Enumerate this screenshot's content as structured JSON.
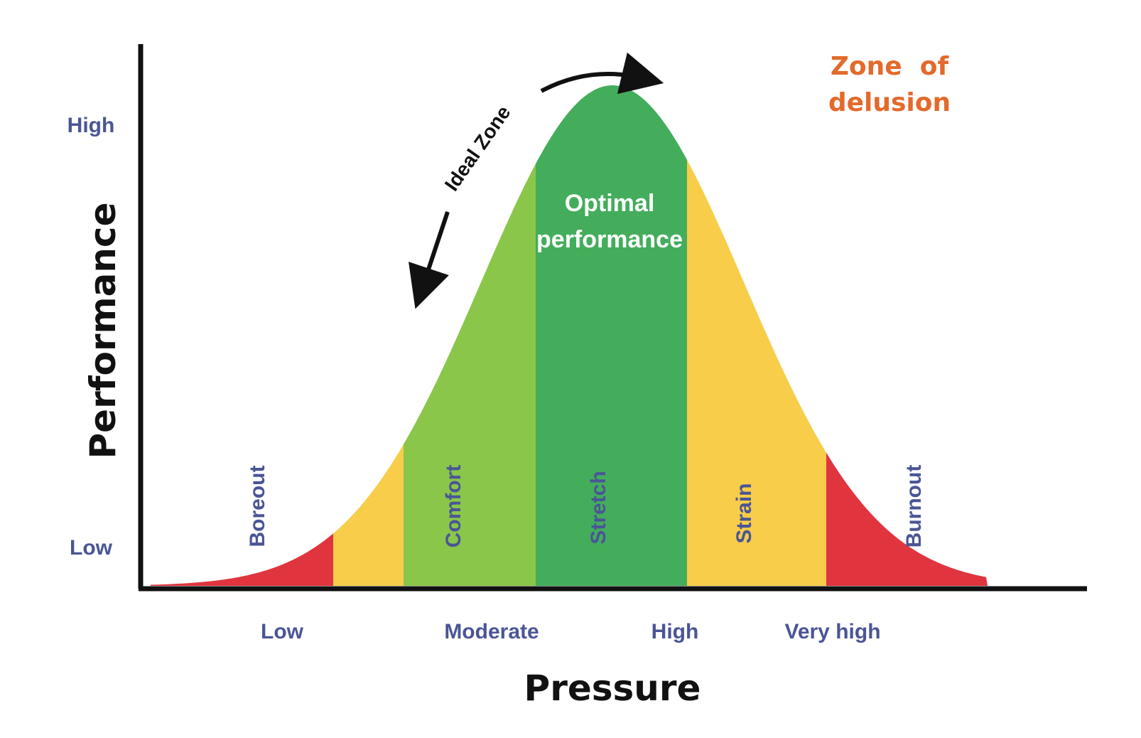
{
  "chart_data": {
    "type": "area",
    "title": "",
    "xlabel": "Pressure",
    "ylabel": "Performance",
    "x_ticks": [
      "Low",
      "Moderate",
      "High",
      "Very high"
    ],
    "y_ticks": [
      "High",
      "Low"
    ],
    "curve": "bell",
    "zones": [
      {
        "name": "Boreout",
        "color": "#e0353f",
        "label_color": "#4a5596"
      },
      {
        "name": "",
        "color": "#f7cd4a",
        "label_color": ""
      },
      {
        "name": "Comfort",
        "color": "#8ac64a",
        "label_color": "#4a5596"
      },
      {
        "name": "Stretch",
        "color": "#43ad5b",
        "label_color": "#4a5596"
      },
      {
        "name": "Strain",
        "color": "#f7cd4a",
        "label_color": "#4a5596"
      },
      {
        "name": "Burnout",
        "color": "#e0353f",
        "label_color": "#4a5596"
      }
    ],
    "annotations": {
      "optimal": [
        "Optimal",
        "performance"
      ],
      "ideal_zone": "Ideal Zone",
      "delusion": [
        "Zone  of",
        "delusion"
      ],
      "delusion_color": "#e36a2b"
    },
    "grid": false,
    "legend": "none"
  }
}
